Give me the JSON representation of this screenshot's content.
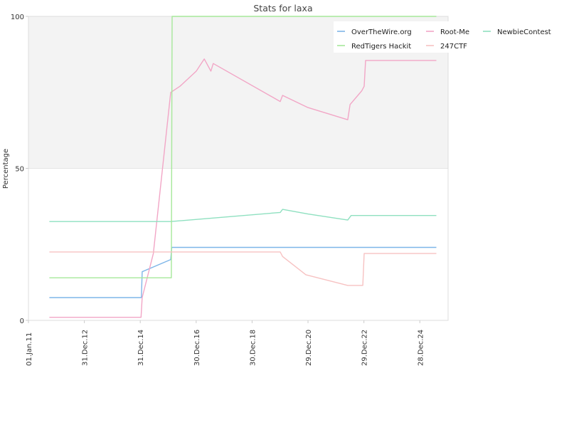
{
  "chart_data": {
    "type": "line",
    "title": "Stats for laxa",
    "ylabel": "Percentage",
    "xlabel": "",
    "ylim": [
      0,
      100
    ],
    "yticks": [
      "0",
      "50",
      "100"
    ],
    "xticks": [
      {
        "label": "01.Jan.11",
        "date": "2011-01-01"
      },
      {
        "label": "31.Dec.12",
        "date": "2012-12-31"
      },
      {
        "label": "31.Dec.14",
        "date": "2014-12-31"
      },
      {
        "label": "30.Dec.16",
        "date": "2016-12-30"
      },
      {
        "label": "30.Dec.18",
        "date": "2018-12-30"
      },
      {
        "label": "29.Dec.20",
        "date": "2020-12-29"
      },
      {
        "label": "29.Dec.22",
        "date": "2022-12-29"
      },
      {
        "label": "28.Dec.24",
        "date": "2024-12-28"
      }
    ],
    "xlim": [
      "2011-01-01",
      "2026-01-01"
    ],
    "band": {
      "from": 50,
      "to": 100,
      "color": "#f3f3f3"
    },
    "legend_position": "top-right",
    "series": [
      {
        "name": "OverTheWire.org",
        "color": "#7eb6e8",
        "points": [
          [
            "2011-10-01",
            7.5
          ],
          [
            "2015-01-15",
            7.5
          ],
          [
            "2015-01-25",
            16.0
          ],
          [
            "2016-02-01",
            20.0
          ],
          [
            "2016-02-15",
            24.0
          ],
          [
            "2025-08-01",
            24.0
          ]
        ]
      },
      {
        "name": "Root-Me",
        "color": "#f2a6c6",
        "points": [
          [
            "2011-10-01",
            1.0
          ],
          [
            "2015-01-10",
            1.0
          ],
          [
            "2015-01-25",
            7.5
          ],
          [
            "2015-06-20",
            22.0
          ],
          [
            "2016-02-01",
            75.0
          ],
          [
            "2016-06-01",
            77.0
          ],
          [
            "2017-01-01",
            82.0
          ],
          [
            "2017-04-15",
            86.0
          ],
          [
            "2017-07-10",
            82.0
          ],
          [
            "2017-08-10",
            84.5
          ],
          [
            "2020-01-01",
            72.0
          ],
          [
            "2020-02-01",
            74.0
          ],
          [
            "2020-12-29",
            70.0
          ],
          [
            "2022-06-01",
            66.0
          ],
          [
            "2022-07-01",
            71.0
          ],
          [
            "2022-12-01",
            75.5
          ],
          [
            "2023-01-01",
            77.0
          ],
          [
            "2023-01-20",
            85.5
          ],
          [
            "2025-08-01",
            85.5
          ]
        ]
      },
      {
        "name": "NewbieContest",
        "color": "#8fe0c0",
        "points": [
          [
            "2011-10-01",
            32.5
          ],
          [
            "2016-02-01",
            32.5
          ],
          [
            "2020-01-01",
            35.5
          ],
          [
            "2020-02-01",
            36.5
          ],
          [
            "2020-12-29",
            35.0
          ],
          [
            "2022-06-01",
            33.0
          ],
          [
            "2022-07-15",
            34.5
          ],
          [
            "2025-08-01",
            34.5
          ]
        ]
      },
      {
        "name": "RedTigers Hackit",
        "color": "#a6e89a",
        "points": [
          [
            "2011-10-01",
            14.0
          ],
          [
            "2016-02-10",
            14.0
          ],
          [
            "2016-02-20",
            100.0
          ],
          [
            "2025-08-01",
            100.0
          ]
        ]
      },
      {
        "name": "247CTF",
        "color": "#f7c2c2",
        "points": [
          [
            "2011-10-01",
            22.5
          ],
          [
            "2020-01-01",
            22.5
          ],
          [
            "2020-02-01",
            21.0
          ],
          [
            "2020-12-01",
            15.0
          ],
          [
            "2022-06-01",
            11.5
          ],
          [
            "2022-12-15",
            11.5
          ],
          [
            "2023-01-01",
            22.0
          ],
          [
            "2025-08-01",
            22.0
          ]
        ]
      }
    ]
  }
}
